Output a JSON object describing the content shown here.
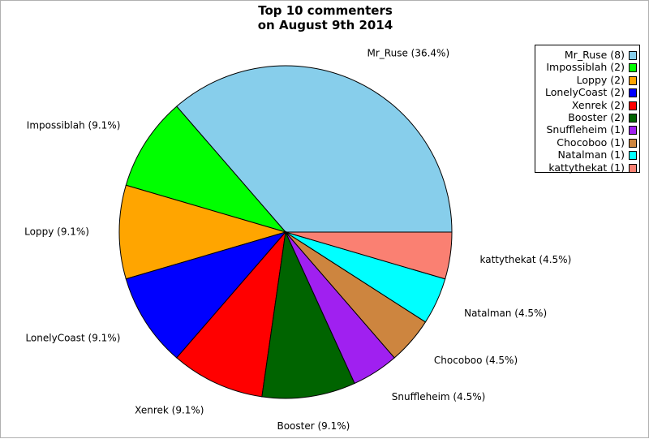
{
  "chart_data": {
    "type": "pie",
    "title_lines": [
      "Top 10 commenters",
      "on August 9th 2014"
    ],
    "slices": [
      {
        "name": "Mr_Ruse",
        "value": 8,
        "label": "Mr_Ruse (36.4%)",
        "legend": "Mr_Ruse (8)",
        "color": "#87ceeb"
      },
      {
        "name": "Impossiblah",
        "value": 2,
        "label": "Impossiblah (9.1%)",
        "legend": "Impossiblah (2)",
        "color": "#00ff00"
      },
      {
        "name": "Loppy",
        "value": 2,
        "label": "Loppy (9.1%)",
        "legend": "Loppy (2)",
        "color": "#ffa500"
      },
      {
        "name": "LonelyCoast",
        "value": 2,
        "label": "LonelyCoast (9.1%)",
        "legend": "LonelyCoast (2)",
        "color": "#0000ff"
      },
      {
        "name": "Xenrek",
        "value": 2,
        "label": "Xenrek (9.1%)",
        "legend": "Xenrek (2)",
        "color": "#ff0000"
      },
      {
        "name": "Booster",
        "value": 2,
        "label": "Booster (9.1%)",
        "legend": "Booster (2)",
        "color": "#006400"
      },
      {
        "name": "Snuffleheim",
        "value": 1,
        "label": "Snuffleheim (4.5%)",
        "legend": "Snuffleheim (1)",
        "color": "#a020f0"
      },
      {
        "name": "Chocoboo",
        "value": 1,
        "label": "Chocoboo (4.5%)",
        "legend": "Chocoboo (1)",
        "color": "#cd853f"
      },
      {
        "name": "Natalman",
        "value": 1,
        "label": "Natalman (4.5%)",
        "legend": "Natalman (1)",
        "color": "#00ffff"
      },
      {
        "name": "kattythekat",
        "value": 1,
        "label": "kattythekat (4.5%)",
        "legend": "kattythekat (1)",
        "color": "#fa8072"
      }
    ],
    "start_angle_deg": 0,
    "direction": "counterclockwise",
    "legend_position": "top-right"
  }
}
